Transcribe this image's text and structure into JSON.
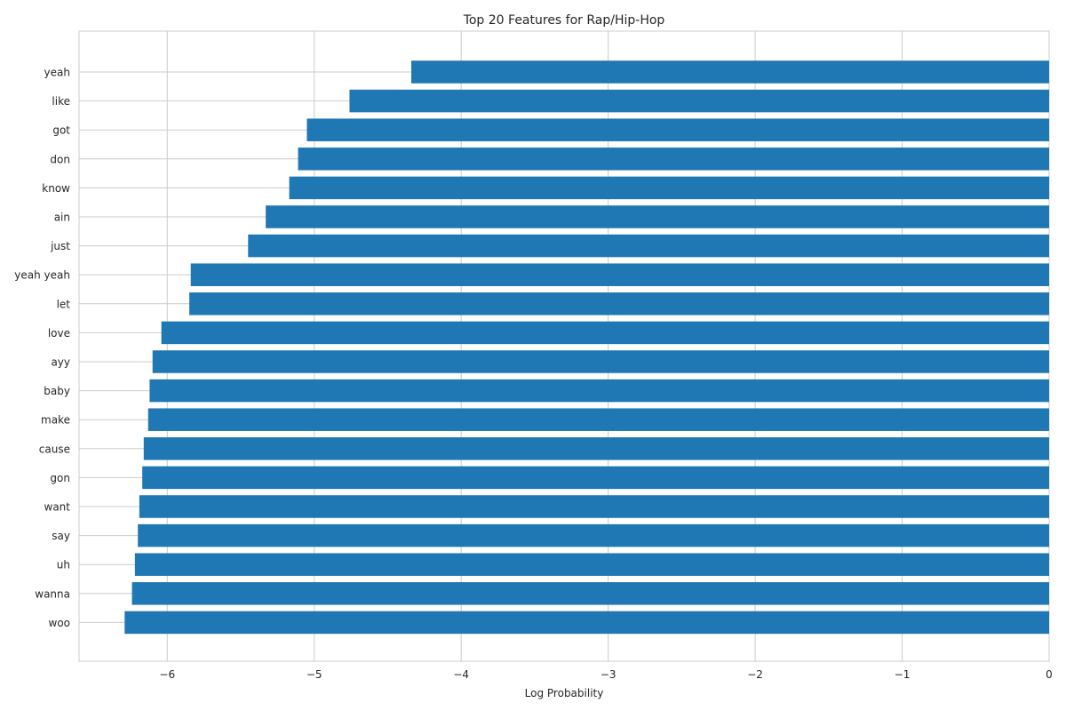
{
  "chart_data": {
    "type": "bar",
    "orientation": "horizontal",
    "title": "Top 20 Features for Rap/Hip-Hop",
    "xlabel": "Log Probability",
    "ylabel": "",
    "xlim": [
      -6.6,
      0
    ],
    "xticks": [
      -6,
      -5,
      -4,
      -3,
      -2,
      -1,
      0
    ],
    "xtick_labels": [
      "−6",
      "−5",
      "−4",
      "−3",
      "−2",
      "−1",
      "0"
    ],
    "grid": true,
    "bar_color": "#1f77b4",
    "categories": [
      "yeah",
      "like",
      "got",
      "don",
      "know",
      "ain",
      "just",
      "yeah yeah",
      "let",
      "love",
      "ayy",
      "baby",
      "make",
      "cause",
      "gon",
      "want",
      "say",
      "uh",
      "wanna",
      "woo"
    ],
    "values": [
      -4.34,
      -4.76,
      -5.05,
      -5.11,
      -5.17,
      -5.33,
      -5.45,
      -5.84,
      -5.85,
      -6.04,
      -6.1,
      -6.12,
      -6.13,
      -6.16,
      -6.17,
      -6.19,
      -6.2,
      -6.22,
      -6.24,
      -6.29
    ]
  }
}
